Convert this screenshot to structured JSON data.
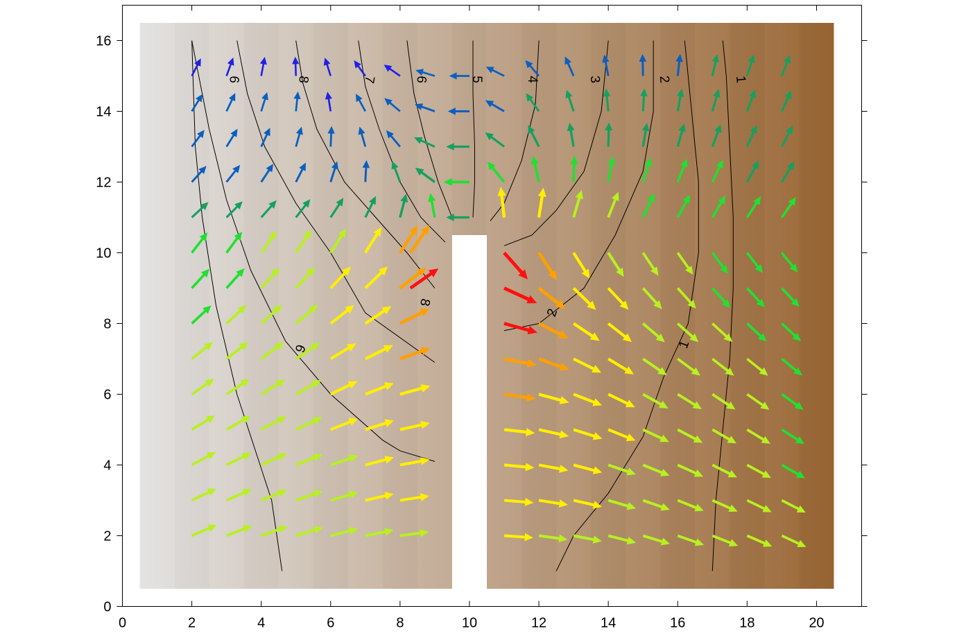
{
  "chart_data": {
    "type": "vector-field",
    "title": "",
    "xlabel": "",
    "ylabel": "",
    "xlim": [
      0,
      21.3
    ],
    "ylim": [
      0,
      17
    ],
    "x_ticks": [
      0,
      2,
      4,
      6,
      8,
      10,
      12,
      14,
      16,
      18,
      20
    ],
    "y_ticks": [
      0,
      2,
      4,
      6,
      8,
      10,
      12,
      14,
      16
    ],
    "x_tick_labels": [
      "0",
      "2",
      "4",
      "6",
      "8",
      "10",
      "12",
      "14",
      "16",
      "18",
      "20"
    ],
    "y_tick_labels": [
      "0",
      "2",
      "4",
      "6",
      "8",
      "10",
      "12",
      "14",
      "16"
    ],
    "grid": false,
    "domain": {
      "x": [
        0.5,
        20.5
      ],
      "y": [
        0.5,
        16.5
      ]
    },
    "barrier": {
      "x": [
        9.5,
        10.5
      ],
      "y_top": 10.5
    },
    "background_gradient": {
      "from_color": "#e3e3e3",
      "to_color": "#9a6633",
      "direction": "left-to-right"
    },
    "vector_colors": [
      "#7b4ff0",
      "#2020e6",
      "#0a5fbf",
      "#15a060",
      "#20e030",
      "#b8f020",
      "#ffee00",
      "#ffa000",
      "#ff1010"
    ],
    "contours": [
      {
        "level": "1",
        "points": [
          [
            17,
            1
          ],
          [
            17.1,
            3
          ],
          [
            17.3,
            5
          ],
          [
            17.5,
            7
          ],
          [
            17.6,
            9
          ],
          [
            17.6,
            11
          ],
          [
            17.5,
            13
          ],
          [
            17.4,
            15
          ],
          [
            17.3,
            16
          ]
        ]
      },
      {
        "level": "1",
        "points": [
          [
            12.5,
            1
          ],
          [
            13,
            2
          ],
          [
            14,
            3.2
          ],
          [
            15,
            4.8
          ],
          [
            15.6,
            6.5
          ],
          [
            16.3,
            8
          ],
          [
            16.6,
            10
          ],
          [
            16.6,
            12
          ],
          [
            16.4,
            14
          ],
          [
            16.2,
            16
          ]
        ]
      },
      {
        "level": "2",
        "points": [
          [
            15.3,
            16
          ],
          [
            15.3,
            14
          ],
          [
            15,
            12.3
          ],
          [
            14.2,
            10.5
          ],
          [
            13.3,
            9
          ],
          [
            12,
            8
          ],
          [
            11,
            7.8
          ]
        ]
      },
      {
        "level": "3",
        "points": [
          [
            14,
            16
          ],
          [
            13.8,
            14
          ],
          [
            13.3,
            12.3
          ],
          [
            12.5,
            11.2
          ],
          [
            11.8,
            10.5
          ],
          [
            11,
            10.2
          ]
        ]
      },
      {
        "level": "4",
        "points": [
          [
            12,
            16
          ],
          [
            11.9,
            14.2
          ],
          [
            11.5,
            12.6
          ],
          [
            11.0,
            11.4
          ],
          [
            10.6,
            10.9
          ]
        ]
      },
      {
        "level": "5",
        "points": [
          [
            10.1,
            16
          ],
          [
            10.1,
            14.5
          ],
          [
            10.15,
            13
          ],
          [
            10.15,
            12
          ],
          [
            10.1,
            11
          ]
        ]
      },
      {
        "level": "6",
        "points": [
          [
            8.2,
            16
          ],
          [
            8.4,
            14.5
          ],
          [
            8.7,
            13.3
          ],
          [
            9.1,
            12
          ],
          [
            9.5,
            11
          ]
        ]
      },
      {
        "level": "7",
        "points": [
          [
            6.8,
            16
          ],
          [
            7,
            14.7
          ],
          [
            7.4,
            13.5
          ],
          [
            8,
            12
          ],
          [
            8.6,
            11
          ],
          [
            9.3,
            10.3
          ]
        ]
      },
      {
        "level": "8",
        "points": [
          [
            5,
            16
          ],
          [
            5.2,
            14.8
          ],
          [
            5.6,
            13.5
          ],
          [
            6.4,
            12
          ],
          [
            7.3,
            11
          ],
          [
            8.2,
            10
          ],
          [
            9,
            9
          ]
        ]
      },
      {
        "level": "8",
        "points": [
          [
            3.3,
            16
          ],
          [
            3.6,
            14.5
          ],
          [
            4.1,
            13
          ],
          [
            5,
            11.4
          ],
          [
            6,
            10
          ],
          [
            7,
            8.3
          ],
          [
            9,
            6.9
          ]
        ]
      },
      {
        "level": "9",
        "points": [
          [
            2,
            16
          ],
          [
            2.5,
            13.5
          ],
          [
            3,
            11.5
          ],
          [
            3.7,
            9.5
          ],
          [
            4.7,
            7.5
          ],
          [
            6,
            6
          ],
          [
            7.5,
            4.7
          ],
          [
            8,
            4.4
          ],
          [
            9,
            4.1
          ]
        ]
      },
      {
        "level": "9",
        "points": [
          [
            2,
            16
          ],
          [
            2.1,
            13
          ],
          [
            2.3,
            11
          ],
          [
            2.7,
            8.5
          ],
          [
            3.3,
            6
          ],
          [
            3.8,
            4.5
          ],
          [
            4.3,
            3
          ],
          [
            4.6,
            1
          ]
        ]
      }
    ],
    "contour_labels": [
      {
        "text": "1",
        "x": 17.8,
        "y": 14.9,
        "angle": 85
      },
      {
        "text": "2",
        "x": 15.6,
        "y": 14.9,
        "angle": 85
      },
      {
        "text": "3",
        "x": 13.6,
        "y": 14.9,
        "angle": 85
      },
      {
        "text": "4",
        "x": 11.8,
        "y": 14.9,
        "angle": 90
      },
      {
        "text": "5",
        "x": 10.2,
        "y": 14.9,
        "angle": 90
      },
      {
        "text": "6",
        "x": 8.6,
        "y": 14.9,
        "angle": 95
      },
      {
        "text": "7",
        "x": 7.1,
        "y": 14.9,
        "angle": 100
      },
      {
        "text": "8",
        "x": 5.2,
        "y": 14.9,
        "angle": 95
      },
      {
        "text": "6",
        "x": 3.2,
        "y": 14.9,
        "angle": 95
      },
      {
        "text": "8",
        "x": 8.7,
        "y": 8.6,
        "angle": 100
      },
      {
        "text": "6",
        "x": 5.1,
        "y": 7.3,
        "angle": 110
      },
      {
        "text": "2",
        "x": 12.4,
        "y": 8.3,
        "angle": -70
      },
      {
        "text": "1",
        "x": 16.2,
        "y": 7.4,
        "angle": -70
      }
    ]
  }
}
